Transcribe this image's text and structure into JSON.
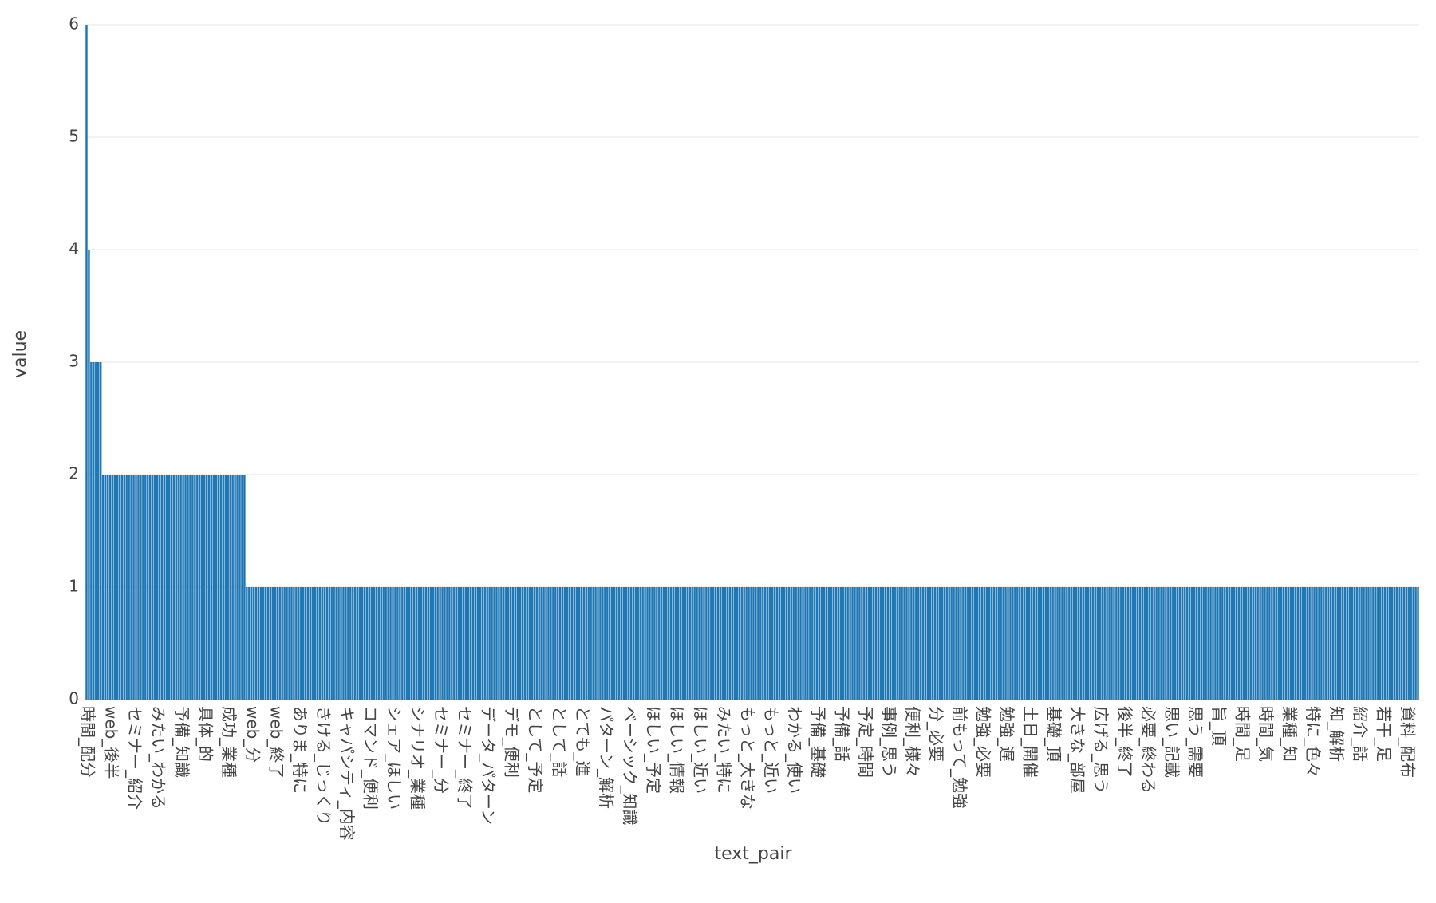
{
  "chart_data": {
    "type": "bar",
    "x_label": "text_pair",
    "y_label": "value",
    "color": "#1f77b4",
    "grid": true,
    "ylim": [
      0,
      6
    ],
    "yticks": [
      0,
      1,
      2,
      3,
      4,
      5,
      6
    ],
    "categories": [
      "時間_配分",
      null,
      null,
      null,
      null,
      null,
      null,
      null,
      null,
      null,
      "web_後半",
      null,
      null,
      null,
      null,
      null,
      null,
      null,
      null,
      null,
      "セミナー_紹介",
      null,
      null,
      null,
      null,
      null,
      null,
      null,
      null,
      null,
      "みたい_わかる",
      null,
      null,
      null,
      null,
      null,
      null,
      null,
      null,
      null,
      "予備_知識",
      null,
      null,
      null,
      null,
      null,
      null,
      null,
      null,
      null,
      "具体_的",
      null,
      null,
      null,
      null,
      null,
      null,
      null,
      null,
      null,
      "成功_業種",
      null,
      null,
      null,
      null,
      null,
      null,
      null,
      null,
      null,
      "web_分",
      null,
      null,
      null,
      null,
      null,
      null,
      null,
      null,
      null,
      "web_終了",
      null,
      null,
      null,
      null,
      null,
      null,
      null,
      null,
      null,
      "ありま_特に",
      null,
      null,
      null,
      null,
      null,
      null,
      null,
      null,
      null,
      "きける_じっくり",
      null,
      null,
      null,
      null,
      null,
      null,
      null,
      null,
      null,
      "キャパシティ_内容",
      null,
      null,
      null,
      null,
      null,
      null,
      null,
      null,
      null,
      "コマンド_便利",
      null,
      null,
      null,
      null,
      null,
      null,
      null,
      null,
      null,
      "シェア_ほしい",
      null,
      null,
      null,
      null,
      null,
      null,
      null,
      null,
      null,
      "シナリオ_業種",
      null,
      null,
      null,
      null,
      null,
      null,
      null,
      null,
      null,
      "セミナー_分",
      null,
      null,
      null,
      null,
      null,
      null,
      null,
      null,
      null,
      "セミナー_終了",
      null,
      null,
      null,
      null,
      null,
      null,
      null,
      null,
      null,
      "データ_パターン",
      null,
      null,
      null,
      null,
      null,
      null,
      null,
      null,
      null,
      "デモ_便利",
      null,
      null,
      null,
      null,
      null,
      null,
      null,
      null,
      null,
      "として_予定",
      null,
      null,
      null,
      null,
      null,
      null,
      null,
      null,
      null,
      "として_話",
      null,
      null,
      null,
      null,
      null,
      null,
      null,
      null,
      null,
      "とても_進",
      null,
      null,
      null,
      null,
      null,
      null,
      null,
      null,
      null,
      "パターン_解析",
      null,
      null,
      null,
      null,
      null,
      null,
      null,
      null,
      null,
      "ベーシック_知識",
      null,
      null,
      null,
      null,
      null,
      null,
      null,
      null,
      null,
      "ほしい_予定",
      null,
      null,
      null,
      null,
      null,
      null,
      null,
      null,
      null,
      "ほしい_情報",
      null,
      null,
      null,
      null,
      null,
      null,
      null,
      null,
      null,
      "ほしい_近い",
      null,
      null,
      null,
      null,
      null,
      null,
      null,
      null,
      null,
      "みたい_特に",
      null,
      null,
      null,
      null,
      null,
      null,
      null,
      null,
      null,
      "もっと_大きな",
      null,
      null,
      null,
      null,
      null,
      null,
      null,
      null,
      null,
      "もっと_近い",
      null,
      null,
      null,
      null,
      null,
      null,
      null,
      null,
      null,
      "わかる_使い",
      null,
      null,
      null,
      null,
      null,
      null,
      null,
      null,
      null,
      "予備_基礎",
      null,
      null,
      null,
      null,
      null,
      null,
      null,
      null,
      null,
      "予備_話",
      null,
      null,
      null,
      null,
      null,
      null,
      null,
      null,
      null,
      "予定_時間",
      null,
      null,
      null,
      null,
      null,
      null,
      null,
      null,
      null,
      "事例_思う",
      null,
      null,
      null,
      null,
      null,
      null,
      null,
      null,
      null,
      "便利_様々",
      null,
      null,
      null,
      null,
      null,
      null,
      null,
      null,
      null,
      "分_必要",
      null,
      null,
      null,
      null,
      null,
      null,
      null,
      null,
      null,
      "前もって_勉強",
      null,
      null,
      null,
      null,
      null,
      null,
      null,
      null,
      null,
      "勉強_必要",
      null,
      null,
      null,
      null,
      null,
      null,
      null,
      null,
      null,
      "勉強_遅",
      null,
      null,
      null,
      null,
      null,
      null,
      null,
      null,
      null,
      "土日_開催",
      null,
      null,
      null,
      null,
      null,
      null,
      null,
      null,
      null,
      "基礎_頂",
      null,
      null,
      null,
      null,
      null,
      null,
      null,
      null,
      null,
      "大きな_部屋",
      null,
      null,
      null,
      null,
      null,
      null,
      null,
      null,
      null,
      "広げる_思う",
      null,
      null,
      null,
      null,
      null,
      null,
      null,
      null,
      null,
      "後半_終了",
      null,
      null,
      null,
      null,
      null,
      null,
      null,
      null,
      null,
      "必要_終わる",
      null,
      null,
      null,
      null,
      null,
      null,
      null,
      null,
      null,
      "思い_記載",
      null,
      null,
      null,
      null,
      null,
      null,
      null,
      null,
      null,
      "思う_需要",
      null,
      null,
      null,
      null,
      null,
      null,
      null,
      null,
      null,
      "旨_頂",
      null,
      null,
      null,
      null,
      null,
      null,
      null,
      null,
      null,
      "時間_足",
      null,
      null,
      null,
      null,
      null,
      null,
      null,
      null,
      null,
      "時間_気",
      null,
      null,
      null,
      null,
      null,
      null,
      null,
      null,
      null,
      "業種_知",
      null,
      null,
      null,
      null,
      null,
      null,
      null,
      null,
      null,
      "特に_色々",
      null,
      null,
      null,
      null,
      null,
      null,
      null,
      null,
      null,
      "知_解析",
      null,
      null,
      null,
      null,
      null,
      null,
      null,
      null,
      null,
      "紹介_話",
      null,
      null,
      null,
      null,
      null,
      null,
      null,
      null,
      null,
      "若干_足",
      null,
      null,
      null,
      null,
      null,
      null,
      null,
      null,
      null,
      "資料_配布",
      null,
      null,
      null,
      null,
      null
    ],
    "values": [
      6,
      4,
      3,
      3,
      3,
      3,
      3,
      2,
      2,
      2,
      2,
      2,
      2,
      2,
      2,
      2,
      2,
      2,
      2,
      2,
      2,
      2,
      2,
      2,
      2,
      2,
      2,
      2,
      2,
      2,
      2,
      2,
      2,
      2,
      2,
      2,
      2,
      2,
      2,
      2,
      2,
      2,
      2,
      2,
      2,
      2,
      2,
      2,
      2,
      2,
      2,
      2,
      2,
      2,
      2,
      2,
      2,
      2,
      2,
      2,
      2,
      2,
      2,
      2,
      2,
      2,
      2,
      2,
      1,
      1,
      1,
      1,
      1,
      1,
      1,
      1,
      1,
      1,
      1,
      1,
      1,
      1,
      1,
      1,
      1,
      1,
      1,
      1,
      1,
      1,
      1,
      1,
      1,
      1,
      1,
      1,
      1,
      1,
      1,
      1,
      1,
      1,
      1,
      1,
      1,
      1,
      1,
      1,
      1,
      1,
      1,
      1,
      1,
      1,
      1,
      1,
      1,
      1,
      1,
      1,
      1,
      1,
      1,
      1,
      1,
      1,
      1,
      1,
      1,
      1,
      1,
      1,
      1,
      1,
      1,
      1,
      1,
      1,
      1,
      1,
      1,
      1,
      1,
      1,
      1,
      1,
      1,
      1,
      1,
      1,
      1,
      1,
      1,
      1,
      1,
      1,
      1,
      1,
      1,
      1,
      1,
      1,
      1,
      1,
      1,
      1,
      1,
      1,
      1,
      1,
      1,
      1,
      1,
      1,
      1,
      1,
      1,
      1,
      1,
      1,
      1,
      1,
      1,
      1,
      1,
      1,
      1,
      1,
      1,
      1,
      1,
      1,
      1,
      1,
      1,
      1,
      1,
      1,
      1,
      1,
      1,
      1,
      1,
      1,
      1,
      1,
      1,
      1,
      1,
      1,
      1,
      1,
      1,
      1,
      1,
      1,
      1,
      1,
      1,
      1,
      1,
      1,
      1,
      1,
      1,
      1,
      1,
      1,
      1,
      1,
      1,
      1,
      1,
      1,
      1,
      1,
      1,
      1,
      1,
      1,
      1,
      1,
      1,
      1,
      1,
      1,
      1,
      1,
      1,
      1,
      1,
      1,
      1,
      1,
      1,
      1,
      1,
      1,
      1,
      1,
      1,
      1,
      1,
      1,
      1,
      1,
      1,
      1,
      1,
      1,
      1,
      1,
      1,
      1,
      1,
      1,
      1,
      1,
      1,
      1,
      1,
      1,
      1,
      1,
      1,
      1,
      1,
      1,
      1,
      1,
      1,
      1,
      1,
      1,
      1,
      1,
      1,
      1,
      1,
      1,
      1,
      1,
      1,
      1,
      1,
      1,
      1,
      1,
      1,
      1,
      1,
      1,
      1,
      1,
      1,
      1,
      1,
      1,
      1,
      1,
      1,
      1,
      1,
      1,
      1,
      1,
      1,
      1,
      1,
      1,
      1,
      1,
      1,
      1,
      1,
      1,
      1,
      1,
      1,
      1,
      1,
      1,
      1,
      1,
      1,
      1,
      1,
      1,
      1,
      1,
      1,
      1,
      1,
      1,
      1,
      1,
      1,
      1,
      1,
      1,
      1,
      1,
      1,
      1,
      1,
      1,
      1,
      1,
      1,
      1,
      1,
      1,
      1,
      1,
      1,
      1,
      1,
      1,
      1,
      1,
      1,
      1,
      1,
      1,
      1,
      1,
      1,
      1,
      1,
      1,
      1,
      1,
      1,
      1,
      1,
      1,
      1,
      1,
      1,
      1,
      1,
      1,
      1,
      1,
      1,
      1,
      1,
      1,
      1,
      1,
      1,
      1,
      1,
      1,
      1,
      1,
      1,
      1,
      1,
      1,
      1,
      1,
      1,
      1,
      1,
      1,
      1,
      1,
      1,
      1,
      1,
      1,
      1,
      1,
      1,
      1,
      1,
      1,
      1,
      1,
      1,
      1,
      1,
      1,
      1,
      1,
      1,
      1,
      1,
      1,
      1,
      1,
      1,
      1,
      1,
      1,
      1,
      1,
      1,
      1,
      1,
      1,
      1,
      1,
      1,
      1,
      1,
      1,
      1,
      1,
      1,
      1,
      1,
      1,
      1,
      1,
      1,
      1,
      1,
      1,
      1,
      1,
      1,
      1,
      1,
      1,
      1,
      1,
      1,
      1,
      1,
      1,
      1,
      1,
      1,
      1,
      1,
      1,
      1,
      1,
      1,
      1,
      1,
      1,
      1,
      1,
      1,
      1,
      1,
      1,
      1,
      1,
      1,
      1,
      1,
      1,
      1,
      1,
      1,
      1,
      1,
      1,
      1,
      1,
      1,
      1,
      1,
      1,
      1,
      1,
      1,
      1,
      1,
      1,
      1,
      1,
      1,
      1,
      1,
      1,
      1,
      1,
      1,
      1,
      1,
      1,
      1,
      1,
      1,
      1,
      1,
      1,
      1,
      1,
      1,
      1,
      1,
      1,
      1,
      1,
      1,
      1,
      1,
      1,
      1,
      1
    ]
  }
}
